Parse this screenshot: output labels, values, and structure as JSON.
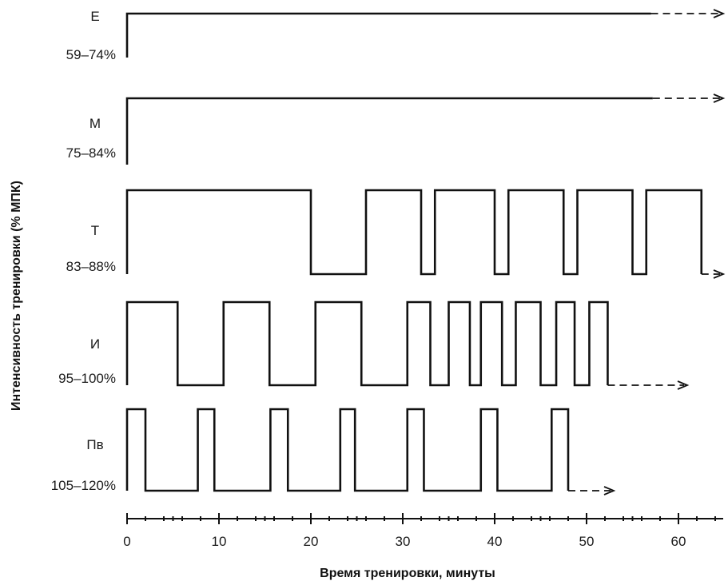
{
  "y_axis_title": "Интенсивность тренировки (% МПК)",
  "x_axis_title": "Время тренировки, минуты",
  "chart_data": {
    "type": "line",
    "xlabel": "Время тренировки, минуты",
    "ylabel": "Интенсивность тренировки (% МПК)",
    "xlim": [
      0,
      60
    ],
    "x_ticks": [
      0,
      10,
      20,
      30,
      40,
      50,
      60
    ],
    "series": [
      {
        "name": "Е",
        "range": "59–74%",
        "segments": [
          [
            0,
            57
          ]
        ],
        "continues": true
      },
      {
        "name": "М",
        "range": "75–84%",
        "segments": [
          [
            0,
            57.2
          ]
        ],
        "continues": true
      },
      {
        "name": "Т",
        "range": "83–88%",
        "segments": [
          [
            0,
            20
          ],
          [
            26,
            32
          ],
          [
            33.5,
            40
          ],
          [
            41.5,
            47.5
          ],
          [
            49,
            55
          ],
          [
            56.5,
            62.5
          ]
        ],
        "continues": true
      },
      {
        "name": "И",
        "range": "95–100%",
        "segments": [
          [
            0,
            5.5
          ],
          [
            10.5,
            15.5
          ],
          [
            20.5,
            25.5
          ],
          [
            30.5,
            33
          ],
          [
            35,
            37.3
          ],
          [
            38.5,
            40.8
          ],
          [
            42.3,
            45
          ],
          [
            46.7,
            48.7
          ],
          [
            50.3,
            52.3
          ]
        ],
        "continues": true
      },
      {
        "name": "Пв",
        "range": "105–120%",
        "segments": [
          [
            0,
            2
          ],
          [
            7.7,
            9.5
          ],
          [
            15.6,
            17.5
          ],
          [
            23.2,
            24.8
          ],
          [
            30.5,
            32.3
          ],
          [
            38.5,
            40.3
          ],
          [
            46.2,
            48
          ]
        ],
        "continues": true
      }
    ]
  }
}
